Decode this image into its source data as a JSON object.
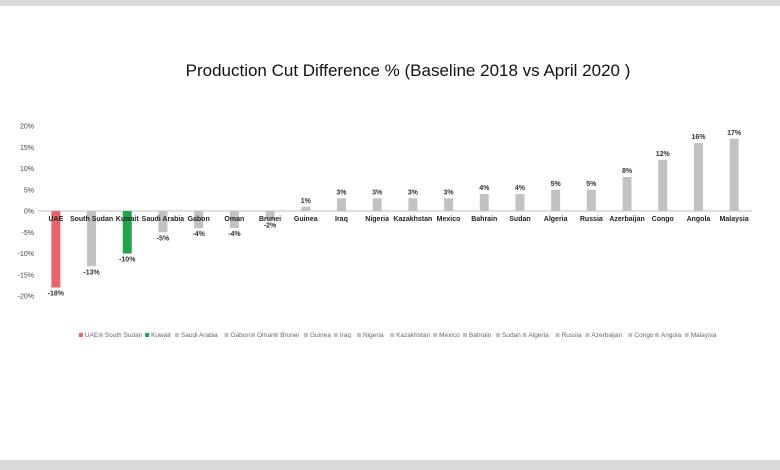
{
  "chart_data": {
    "type": "bar",
    "title": "Production Cut Difference % (Baseline 2018 vs April 2020 )",
    "xlabel": "",
    "ylabel": "",
    "ylim": [
      -20,
      20
    ],
    "yticks": [
      20,
      15,
      10,
      5,
      0,
      -5,
      -10,
      -15,
      -20
    ],
    "ytick_labels": [
      "20%",
      "15%",
      "10%",
      "5%",
      "0%",
      "-5%",
      "-10%",
      "-15%",
      "-20%"
    ],
    "grid": false,
    "legend": "bottom",
    "categories": [
      "UAE",
      "South Sudan",
      "Kuwait",
      "Saudi Arabia",
      "Gabon",
      "Oman",
      "Brunei",
      "Guinea",
      "Iraq",
      "Nigeria",
      "Kazakhstan",
      "Mexico",
      "Bahrain",
      "Sudan",
      "Algeria",
      "Russia",
      "Azerbaijan",
      "Congo",
      "Angola",
      "Malaysia"
    ],
    "values": [
      -18,
      -13,
      -10,
      -5,
      -4,
      -4,
      -2,
      1,
      3,
      3,
      3,
      3,
      4,
      4,
      5,
      5,
      8,
      12,
      16,
      17
    ],
    "value_labels": [
      "-18%",
      "-13%",
      "-10%",
      "-5%",
      "-4%",
      "-4%",
      "-2%",
      "1%",
      "3%",
      "3%",
      "3%",
      "3%",
      "4%",
      "4%",
      "5%",
      "5%",
      "8%",
      "12%",
      "16%",
      "17%"
    ],
    "colors": [
      "#e8646c",
      "#c2c2c2",
      "#22a54a",
      "#c2c2c2",
      "#c2c2c2",
      "#c2c2c2",
      "#c2c2c2",
      "#c2c2c2",
      "#c2c2c2",
      "#c2c2c2",
      "#c2c2c2",
      "#c2c2c2",
      "#c2c2c2",
      "#c2c2c2",
      "#c2c2c2",
      "#c2c2c2",
      "#c2c2c2",
      "#c2c2c2",
      "#c2c2c2",
      "#c2c2c2"
    ]
  }
}
